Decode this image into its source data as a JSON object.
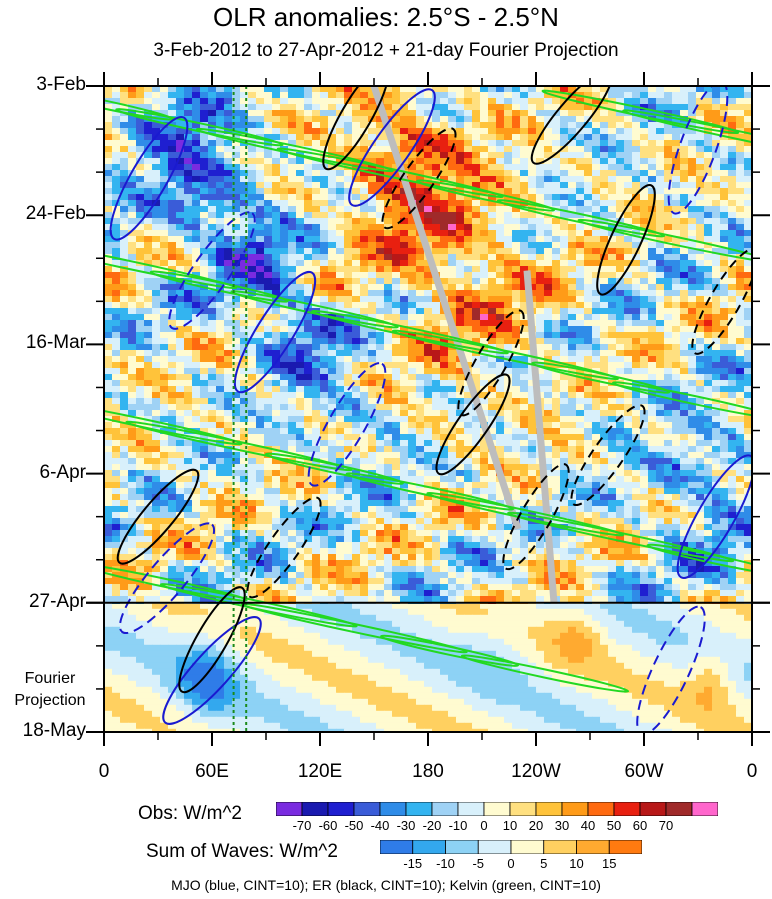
{
  "title": "OLR anomalies: 2.5°S - 2.5°N",
  "subtitle": "3-Feb-2012 to 27-Apr-2012 + 21-day Fourier Projection",
  "fourier_label_lines": [
    "Fourier",
    "Projection"
  ],
  "footer": "MJO (blue, CINT=10); ER (black, CINT=10); Kelvin (green, CINT=10)",
  "chart_data": {
    "type": "heatmap",
    "title": "OLR anomalies: 2.5°S - 2.5°N",
    "y_ticks": [
      "3-Feb",
      "24-Feb",
      "16-Mar",
      "6-Apr",
      "27-Apr",
      "18-May"
    ],
    "y_tick_days": [
      0,
      21,
      42,
      63,
      84,
      105
    ],
    "x_ticks": [
      "0",
      "60E",
      "120E",
      "180",
      "120W",
      "60W",
      "0"
    ],
    "x_tick_lon": [
      0,
      60,
      120,
      180,
      240,
      300,
      360
    ],
    "xlim": [
      0,
      360
    ],
    "ylim_days": [
      0,
      105
    ],
    "forecast_start_day": 84,
    "colorbars": [
      {
        "label": "Obs: W/m^2",
        "ticks": [
          "-70",
          "-60",
          "-50",
          "-40",
          "-30",
          "-20",
          "-10",
          "0",
          "10",
          "20",
          "30",
          "40",
          "50",
          "60",
          "70"
        ],
        "colors": [
          "#7a2be0",
          "#1a1ab0",
          "#1f1fd0",
          "#3a5cd8",
          "#2f8ce8",
          "#33b4f0",
          "#9fd2f5",
          "#d8f0fb",
          "#fffbd0",
          "#ffe080",
          "#ffc33a",
          "#ff9b18",
          "#ff6a10",
          "#e82010",
          "#b81818",
          "#a02a2a",
          "#ff66cc"
        ]
      },
      {
        "label": "Sum of Waves: W/m^2",
        "ticks": [
          "-15",
          "-10",
          "-5",
          "0",
          "5",
          "10",
          "15"
        ],
        "colors": [
          "#2f7ce8",
          "#33a8ee",
          "#8dd2f5",
          "#d8f0fb",
          "#fffbd0",
          "#ffd060",
          "#ffaa30",
          "#ff7a10"
        ]
      }
    ],
    "series": [
      {
        "name": "MJO",
        "color": "#1a1ad0"
      },
      {
        "name": "ER",
        "color": "#000000"
      },
      {
        "name": "Kelvin",
        "color": "#22d822"
      }
    ]
  }
}
